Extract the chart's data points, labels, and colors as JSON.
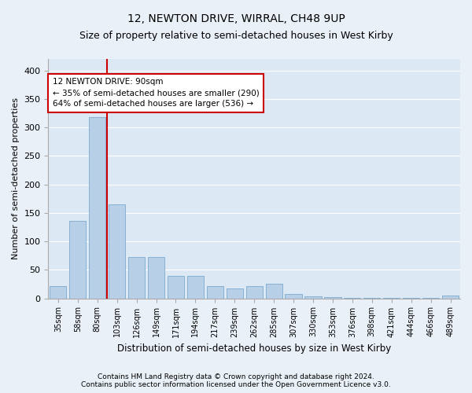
{
  "title": "12, NEWTON DRIVE, WIRRAL, CH48 9UP",
  "subtitle": "Size of property relative to semi-detached houses in West Kirby",
  "xlabel": "Distribution of semi-detached houses by size in West Kirby",
  "ylabel": "Number of semi-detached properties",
  "footer1": "Contains HM Land Registry data © Crown copyright and database right 2024.",
  "footer2": "Contains public sector information licensed under the Open Government Licence v3.0.",
  "bar_color": "#b8cfe8",
  "bar_edge_color": "#7aaad0",
  "bg_color": "#dde8f5",
  "grid_color": "#ffffff",
  "annotation_box_color": "#cc0000",
  "vline_color": "#cc0000",
  "fig_bg_color": "#eaf0f8",
  "categories": [
    "35sqm",
    "58sqm",
    "80sqm",
    "103sqm",
    "126sqm",
    "149sqm",
    "171sqm",
    "194sqm",
    "217sqm",
    "239sqm",
    "262sqm",
    "285sqm",
    "307sqm",
    "330sqm",
    "353sqm",
    "376sqm",
    "398sqm",
    "421sqm",
    "444sqm",
    "466sqm",
    "489sqm"
  ],
  "values": [
    22,
    136,
    318,
    165,
    72,
    72,
    40,
    40,
    22,
    18,
    22,
    25,
    8,
    4,
    2,
    1,
    1,
    1,
    1,
    1,
    5
  ],
  "property_bin_index": 2,
  "vline_x": 2.5,
  "annotation_text1": "12 NEWTON DRIVE: 90sqm",
  "annotation_text2": "← 35% of semi-detached houses are smaller (290)",
  "annotation_text3": "64% of semi-detached houses are larger (536) →",
  "ylim": [
    0,
    420
  ],
  "yticks": [
    0,
    50,
    100,
    150,
    200,
    250,
    300,
    350,
    400
  ],
  "title_fontsize": 10,
  "subtitle_fontsize": 9
}
